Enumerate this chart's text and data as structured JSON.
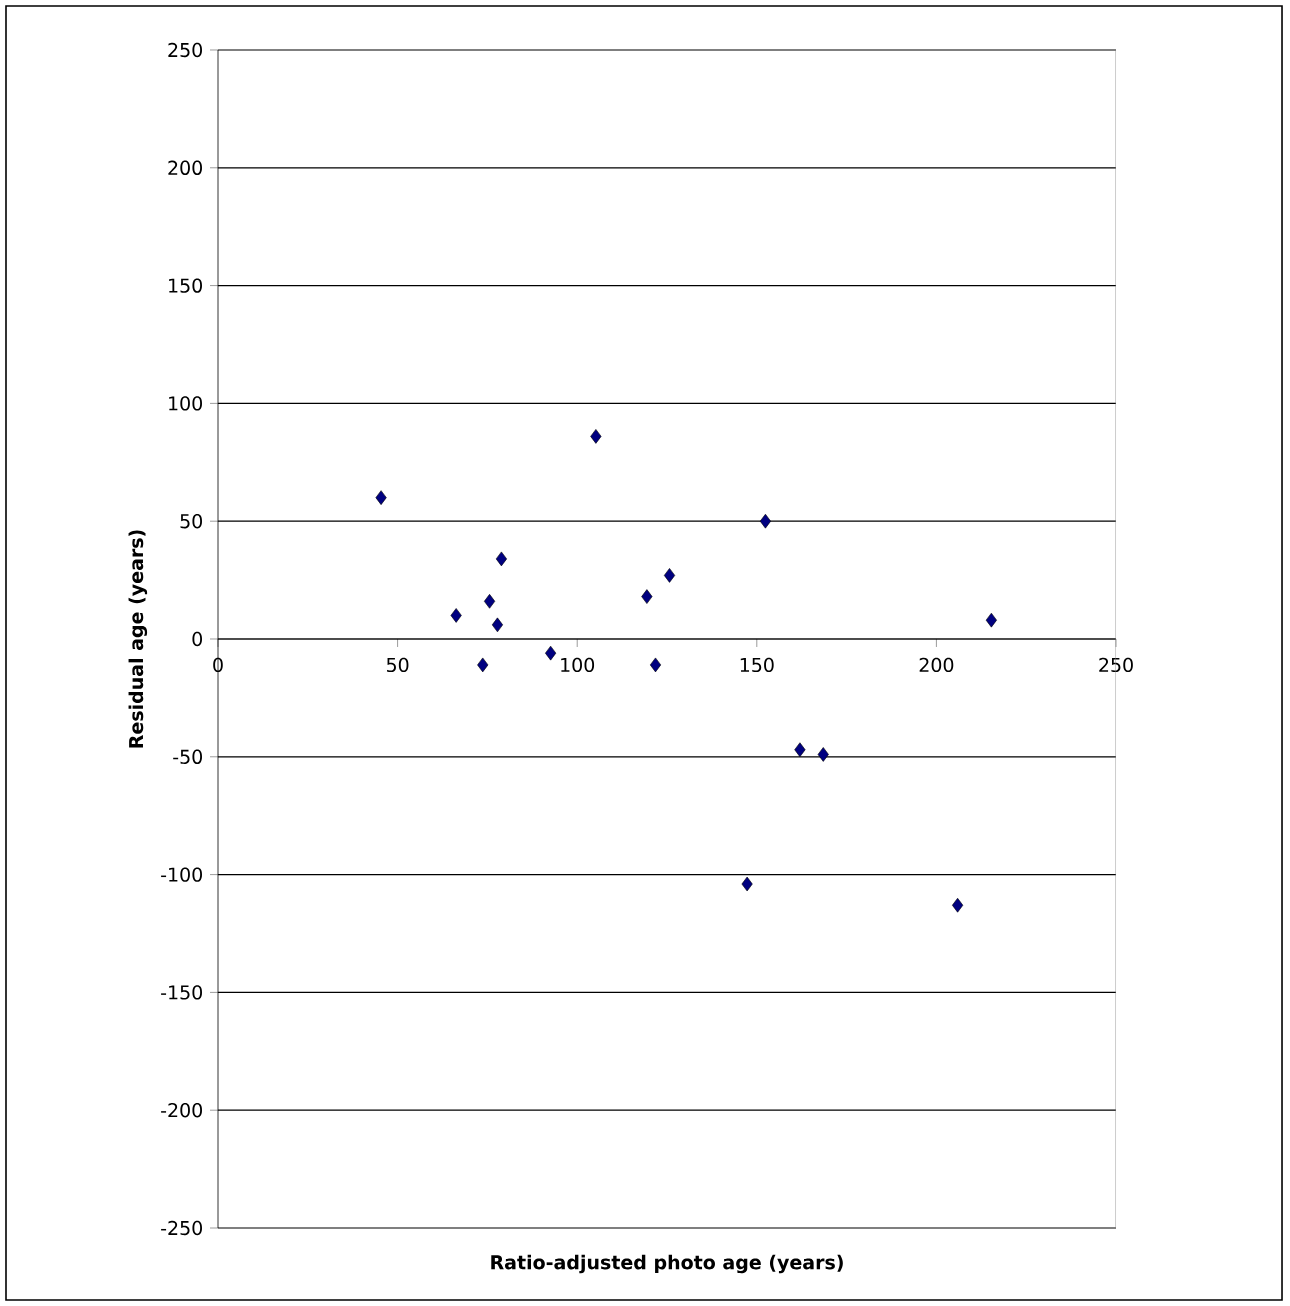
{
  "chart_data": {
    "type": "scatter",
    "xlabel": "Ratio-adjusted photo age (years)",
    "ylabel": "Residual age (years)",
    "x": [
      45.4,
      105.2,
      78.9,
      66.3,
      75.6,
      77.8,
      73.7,
      92.6,
      119.4,
      125.7,
      121.8,
      152.4,
      215.3,
      162,
      168.5,
      147.3,
      205.9
    ],
    "series": [
      {
        "color": "#000080",
        "values": [
          60,
          86,
          34,
          10,
          16,
          6,
          -11,
          -6,
          18,
          27,
          -11,
          50,
          8,
          -47,
          -49,
          -104,
          -113
        ]
      }
    ],
    "xlim": [
      0,
      250
    ],
    "xticks": [
      0,
      50,
      100,
      150,
      200,
      250
    ],
    "ylim": [
      -250,
      250
    ],
    "yticks": [
      -250,
      -200,
      -150,
      -100,
      -50,
      0,
      50,
      100,
      150,
      200,
      250
    ],
    "grid": "y",
    "marker": "diamond"
  }
}
